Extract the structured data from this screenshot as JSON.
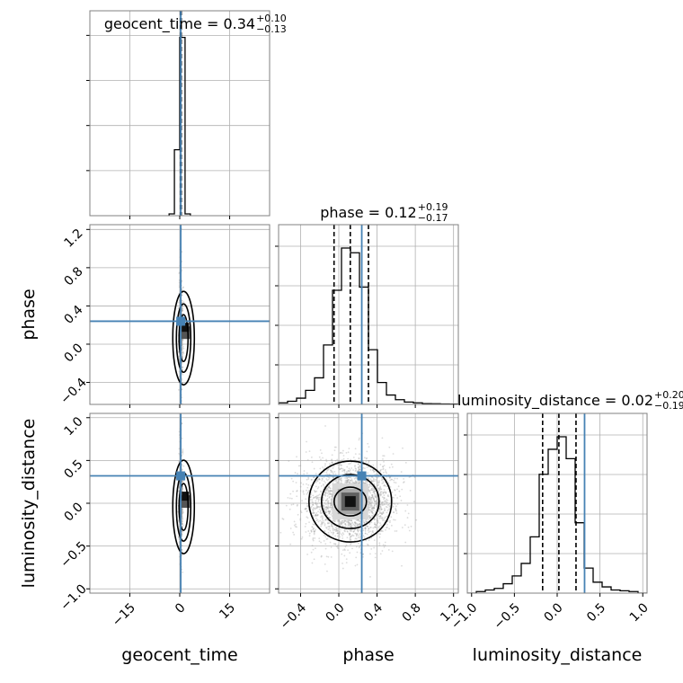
{
  "chart_data": {
    "type": "corner",
    "parameters": [
      "geocent_time",
      "phase",
      "luminosity_distance"
    ],
    "titles": [
      {
        "name": "geocent_time",
        "median": "0.34",
        "plus": "+0.10",
        "minus": "−0.13"
      },
      {
        "name": "phase",
        "median": "0.12",
        "plus": "+0.19",
        "minus": "−0.17"
      },
      {
        "name": "luminosity_distance",
        "median": "0.02",
        "plus": "+0.20",
        "minus": "−0.19"
      }
    ],
    "axis_labels": {
      "x": [
        "geocent_time",
        "phase",
        "luminosity_distance"
      ],
      "y": [
        "phase",
        "luminosity_distance"
      ]
    },
    "ranges": {
      "geocent_time": [
        -27,
        27
      ],
      "phase": [
        -0.63,
        1.25
      ],
      "luminosity_distance": [
        -1.05,
        1.05
      ]
    },
    "ticks": {
      "geocent_time": {
        "values": [
          -15,
          0,
          15
        ],
        "labels": [
          "−15",
          "0",
          "15"
        ]
      },
      "phase": {
        "values": [
          -0.4,
          0.0,
          0.4,
          0.8,
          1.2
        ],
        "labels": [
          "−0.4",
          "0.0",
          "0.4",
          "0.8",
          "1.2"
        ]
      },
      "luminosity_distance": {
        "values": [
          -1.0,
          -0.5,
          0.0,
          0.5,
          1.0
        ],
        "labels": [
          "−1.0",
          "−0.5",
          "0.0",
          "0.5",
          "1.0"
        ]
      }
    },
    "truths": {
      "geocent_time": 0.3,
      "phase": 0.24,
      "luminosity_distance": 0.32
    },
    "quantiles": {
      "geocent_time": [
        0.21,
        0.34,
        0.44
      ],
      "phase": [
        -0.05,
        0.12,
        0.31
      ],
      "luminosity_distance": [
        -0.17,
        0.02,
        0.22
      ]
    },
    "histograms": {
      "geocent_time": {
        "edges": [
          -3.2,
          -1.6,
          0.0,
          1.6,
          3.2
        ],
        "counts": [
          0.01,
          0.37,
          1.0,
          0.01
        ]
      },
      "phase": {
        "edges": [
          -0.63,
          -0.536,
          -0.442,
          -0.348,
          -0.254,
          -0.16,
          -0.066,
          0.028,
          0.122,
          0.216,
          0.31,
          0.404,
          0.498,
          0.592,
          0.686,
          0.78,
          0.874,
          0.968,
          1.062,
          1.156,
          1.25
        ],
        "counts": [
          0.01,
          0.02,
          0.04,
          0.09,
          0.17,
          0.38,
          0.73,
          1.0,
          0.97,
          0.75,
          0.35,
          0.14,
          0.06,
          0.03,
          0.015,
          0.01,
          0.005,
          0.004,
          0.003,
          0.002
        ]
      },
      "luminosity_distance": {
        "edges": [
          -1.05,
          -0.945,
          -0.84,
          -0.735,
          -0.63,
          -0.525,
          -0.42,
          -0.315,
          -0.21,
          -0.105,
          0.0,
          0.105,
          0.21,
          0.315,
          0.42,
          0.525,
          0.63,
          0.735,
          0.84,
          0.945,
          1.05
        ],
        "counts": [
          0.0,
          0.01,
          0.02,
          0.03,
          0.06,
          0.11,
          0.19,
          0.36,
          0.76,
          0.92,
          1.0,
          0.86,
          0.45,
          0.16,
          0.07,
          0.04,
          0.02,
          0.015,
          0.01,
          0.0
        ]
      }
    },
    "grid": true,
    "colors": {
      "truth": "#4682b4",
      "hist": "#000000",
      "points": "#9a9a9a",
      "grid": "#b0b0b0",
      "spine": "#808080"
    }
  }
}
